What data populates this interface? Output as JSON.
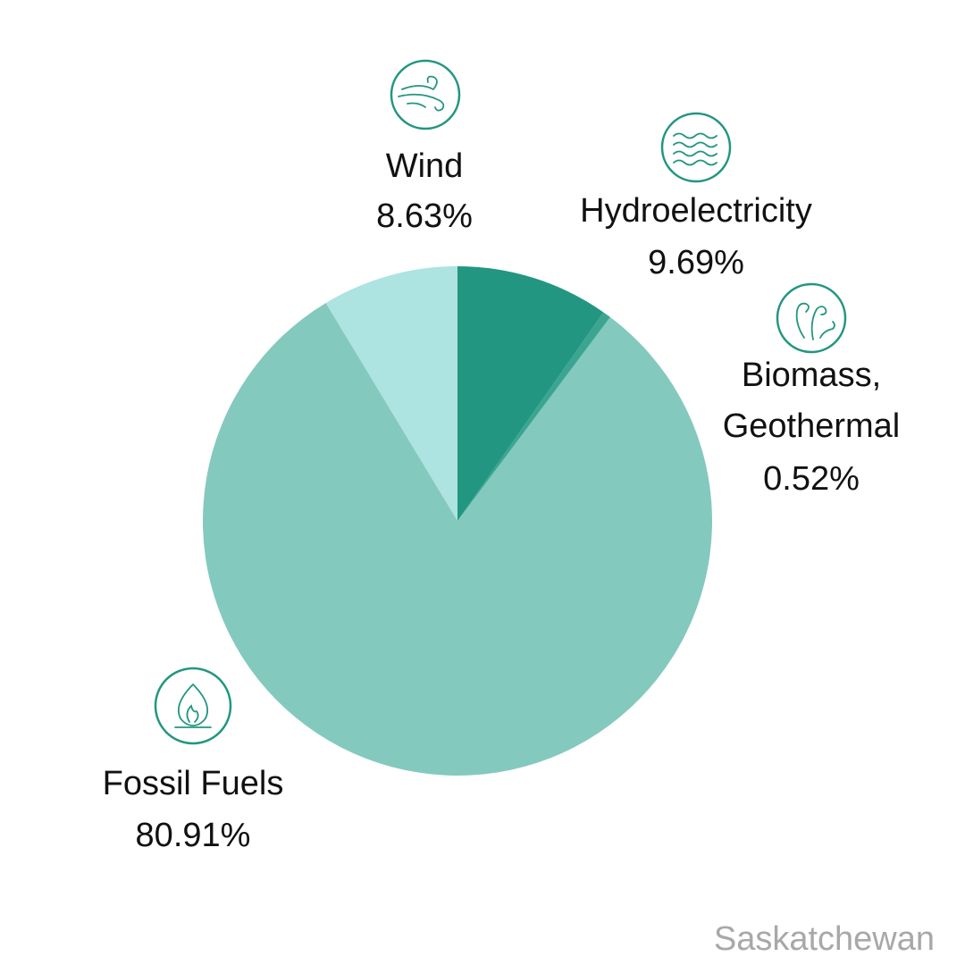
{
  "chart_data": {
    "type": "pie",
    "caption": "Saskatchewan",
    "categories": [
      "Hydroelectricity",
      "Biomass, Geothermal",
      "Fossil Fuels",
      "Wind"
    ],
    "values": [
      9.69,
      0.52,
      80.91,
      8.63
    ],
    "value_labels": [
      "9.69%",
      "0.52%",
      "80.91%",
      "8.63%"
    ],
    "colors": [
      "#229680",
      "#3ba592",
      "#84c9be",
      "#ade3e0"
    ]
  }
}
